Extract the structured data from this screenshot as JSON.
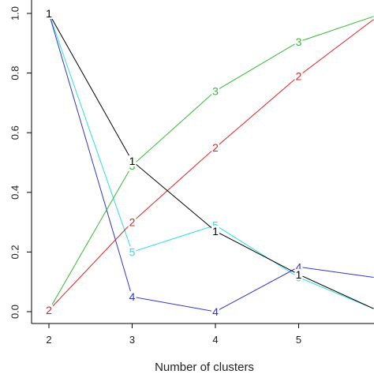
{
  "chart_data": {
    "type": "line",
    "title": "",
    "xlabel": "Number of clusters",
    "ylabel": "",
    "xlim": [
      2,
      5.9
    ],
    "ylim": [
      0,
      1
    ],
    "x_ticks": [
      "2",
      "3",
      "4",
      "5"
    ],
    "y_ticks": [
      "0.0",
      "0.2",
      "0.4",
      "0.6",
      "0.8",
      "1.0"
    ],
    "grid": false,
    "series": [
      {
        "color": "#000000",
        "label_text": "1",
        "x": [
          2,
          3,
          4,
          5,
          5.9
        ],
        "y": [
          1.0,
          0.505,
          0.27,
          0.125,
          0.01
        ],
        "labels": [
          2,
          3,
          4,
          5
        ]
      },
      {
        "color": "#dd2222",
        "label_text": "2",
        "x": [
          2,
          3,
          4,
          5,
          5.9
        ],
        "y": [
          0.005,
          0.3,
          0.55,
          0.79,
          0.98
        ],
        "labels": [
          2,
          3,
          4,
          5
        ]
      },
      {
        "color": "#33bb33",
        "label_text": "3",
        "x": [
          2,
          3,
          4,
          5,
          5.9
        ],
        "y": [
          0.005,
          0.49,
          0.74,
          0.905,
          0.99
        ],
        "labels": [
          2,
          3,
          4,
          5
        ]
      },
      {
        "color": "#3333cc",
        "label_text": "4",
        "x": [
          2,
          3,
          4,
          5,
          5.9
        ],
        "y": [
          1.0,
          0.05,
          0.0,
          0.15,
          0.115
        ],
        "labels": [
          2,
          3,
          4,
          5
        ]
      },
      {
        "color": "#33dddd",
        "label_text": "5",
        "x": [
          2,
          3,
          4,
          5,
          5.9
        ],
        "y": [
          1.0,
          0.2,
          0.29,
          0.115,
          0.01
        ],
        "labels": [
          2,
          3,
          4,
          5
        ]
      }
    ]
  }
}
